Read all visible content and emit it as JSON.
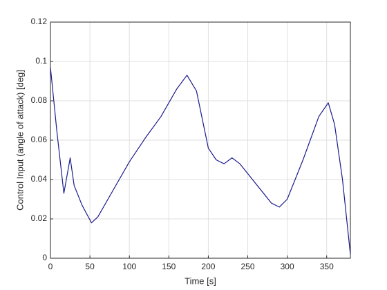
{
  "chart_data": {
    "type": "line",
    "xlabel": "Time [s]",
    "ylabel": "Control Input (angle of attack) [deg]",
    "x": [
      0,
      8,
      17,
      25,
      30,
      40,
      52,
      60,
      80,
      100,
      120,
      140,
      160,
      173,
      185,
      200,
      210,
      220,
      230,
      240,
      260,
      280,
      290,
      300,
      320,
      340,
      352,
      360,
      370,
      380
    ],
    "series": [
      {
        "name": "control input",
        "color": "#1a1a8c",
        "values": [
          0.097,
          0.065,
          0.033,
          0.051,
          0.037,
          0.027,
          0.018,
          0.021,
          0.035,
          0.049,
          0.061,
          0.072,
          0.086,
          0.093,
          0.085,
          0.056,
          0.05,
          0.048,
          0.051,
          0.048,
          0.038,
          0.028,
          0.026,
          0.03,
          0.05,
          0.072,
          0.079,
          0.068,
          0.04,
          0.002
        ]
      }
    ],
    "xlim": [
      0,
      380
    ],
    "xticks": [
      0,
      50,
      100,
      150,
      200,
      250,
      300,
      350
    ],
    "ylim": [
      0,
      0.12
    ],
    "yticks": [
      0,
      0.02,
      0.04,
      0.06,
      0.08,
      0.1,
      0.12
    ],
    "grid": true
  }
}
